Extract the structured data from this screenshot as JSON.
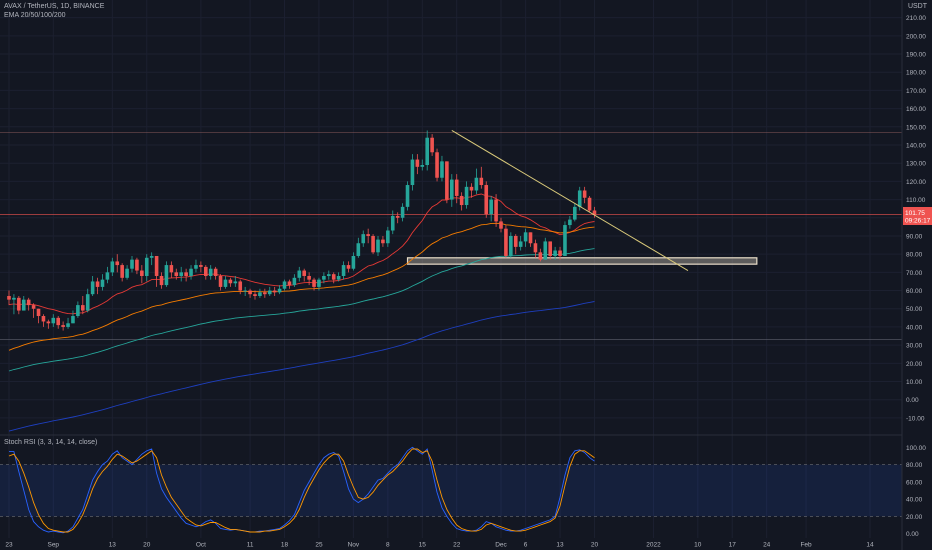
{
  "header": {
    "symbol_line": "AVAX / TetherUS, 1D, BINANCE",
    "indicator_line": "EMA 20/50/100/200",
    "quote_currency": "USDT"
  },
  "stoch_panel": {
    "label": "Stoch RSI (3, 3, 14, 14, close)"
  },
  "price_label": {
    "value": "101.75",
    "countdown": "09:26:17"
  },
  "colors": {
    "background": "#131722",
    "up": "#26a69a",
    "down": "#ef5350",
    "ema20": "#e53935",
    "ema50": "#f57c00",
    "ema100": "#26a69a",
    "ema200": "#1e3fbf",
    "trendline": "#d9c97a",
    "support_zone": "#e8dcc8",
    "stoch_k": "#2962ff",
    "stoch_d": "#ff9800"
  },
  "chart_data": [
    {
      "type": "candlestick",
      "title": "AVAX / TetherUS, 1D, BINANCE",
      "ylabel": "USDT",
      "ylim": [
        -15,
        212
      ],
      "yticks": [
        -10,
        0,
        10,
        20,
        30,
        40,
        50,
        60,
        70,
        80,
        90,
        100,
        110,
        120,
        130,
        140,
        150,
        160,
        170,
        180,
        190,
        200,
        210
      ],
      "x_tick_labels": [
        {
          "label": "23",
          "day": 0
        },
        {
          "label": "Sep",
          "day": 9
        },
        {
          "label": "13",
          "day": 21
        },
        {
          "label": "20",
          "day": 28
        },
        {
          "label": "Oct",
          "day": 39
        },
        {
          "label": "11",
          "day": 49
        },
        {
          "label": "18",
          "day": 56
        },
        {
          "label": "25",
          "day": 63
        },
        {
          "label": "Nov",
          "day": 70
        },
        {
          "label": "8",
          "day": 77
        },
        {
          "label": "15",
          "day": 84
        },
        {
          "label": "22",
          "day": 91
        },
        {
          "label": "Dec",
          "day": 100
        },
        {
          "label": "6",
          "day": 105
        },
        {
          "label": "13",
          "day": 112
        },
        {
          "label": "20",
          "day": 119
        },
        {
          "label": "2022",
          "day": 131
        },
        {
          "label": "10",
          "day": 140
        },
        {
          "label": "17",
          "day": 147
        },
        {
          "label": "24",
          "day": 154
        },
        {
          "label": "Feb",
          "day": 162
        },
        {
          "label": "14",
          "day": 175
        }
      ],
      "close": [
        55,
        56,
        49,
        55,
        52,
        50,
        46,
        43,
        42,
        45,
        41,
        40,
        42,
        46,
        52,
        49,
        58,
        65,
        62,
        66,
        70,
        76,
        74,
        67,
        72,
        77,
        71,
        68,
        78,
        79,
        68,
        63,
        74,
        70,
        68,
        70,
        68,
        72,
        74,
        73,
        68,
        72,
        68,
        62,
        66,
        64,
        65,
        60,
        60,
        58,
        57,
        59,
        58,
        60,
        59,
        61,
        65,
        63,
        67,
        71,
        68,
        66,
        62,
        66,
        68,
        69,
        66,
        68,
        74,
        72,
        79,
        86,
        91,
        90,
        81,
        88,
        86,
        93,
        101,
        100,
        106,
        118,
        132,
        128,
        129,
        144,
        136,
        122,
        131,
        110,
        121,
        112,
        107,
        117,
        115,
        122,
        118,
        102,
        110,
        98,
        94,
        79,
        90,
        84,
        87,
        92,
        86,
        81,
        77,
        87,
        79,
        82,
        79,
        96,
        99,
        106,
        115,
        111,
        104,
        101.75
      ],
      "high": [
        60,
        58,
        57,
        57,
        56,
        53,
        50,
        47,
        44,
        47,
        46,
        43,
        45,
        49,
        54,
        57,
        61,
        68,
        67,
        69,
        73,
        78,
        80,
        75,
        74,
        79,
        78,
        74,
        80,
        81,
        78,
        70,
        76,
        76,
        72,
        73,
        72,
        74,
        77,
        76,
        74,
        74,
        73,
        69,
        68,
        67,
        68,
        66,
        62,
        61,
        60,
        61,
        61,
        62,
        62,
        63,
        66,
        66,
        69,
        73,
        72,
        70,
        67,
        67,
        70,
        71,
        70,
        70,
        76,
        76,
        81,
        89,
        93,
        94,
        91,
        90,
        90,
        95,
        104,
        103,
        108,
        120,
        135,
        135,
        132,
        148,
        146,
        138,
        134,
        131,
        124,
        124,
        114,
        120,
        119,
        127,
        128,
        120,
        112,
        113,
        100,
        96,
        92,
        91,
        90,
        94,
        92,
        88,
        83,
        89,
        87,
        84,
        84,
        98,
        101,
        108,
        117,
        117,
        112,
        106
      ],
      "low": [
        52,
        47,
        47,
        49,
        49,
        45,
        42,
        40,
        39,
        40,
        39,
        38,
        39,
        42,
        45,
        47,
        48,
        57,
        58,
        60,
        64,
        68,
        70,
        65,
        66,
        70,
        69,
        64,
        65,
        74,
        62,
        61,
        62,
        67,
        66,
        65,
        65,
        66,
        70,
        70,
        66,
        66,
        66,
        60,
        61,
        62,
        62,
        58,
        57,
        56,
        55,
        56,
        56,
        57,
        57,
        58,
        60,
        61,
        62,
        65,
        65,
        63,
        60,
        60,
        64,
        66,
        64,
        65,
        66,
        70,
        71,
        78,
        84,
        86,
        80,
        79,
        84,
        84,
        91,
        97,
        98,
        104,
        115,
        124,
        126,
        126,
        134,
        120,
        120,
        108,
        106,
        108,
        104,
        105,
        111,
        113,
        116,
        100,
        98,
        95,
        92,
        78,
        78,
        80,
        82,
        84,
        84,
        78,
        76,
        77,
        77,
        77,
        77,
        80,
        94,
        98,
        104,
        108,
        103,
        100
      ]
    },
    {
      "type": "line",
      "title": "Stoch RSI (3, 3, 14, 14, close)",
      "ylim": [
        -5,
        105
      ],
      "yticks": [
        0,
        20,
        40,
        60,
        80,
        100
      ],
      "reference_lines": [
        20,
        80
      ],
      "series": [
        {
          "name": "K",
          "values": [
            95,
            95,
            72,
            50,
            28,
            14,
            8,
            4,
            2,
            3,
            2,
            1,
            3,
            8,
            18,
            28,
            45,
            62,
            72,
            80,
            84,
            92,
            96,
            88,
            84,
            80,
            86,
            92,
            96,
            98,
            70,
            52,
            42,
            34,
            26,
            18,
            12,
            10,
            8,
            10,
            14,
            16,
            12,
            6,
            5,
            4,
            5,
            4,
            3,
            2,
            2,
            3,
            3,
            4,
            5,
            6,
            10,
            15,
            22,
            36,
            50,
            60,
            70,
            80,
            88,
            92,
            94,
            90,
            72,
            52,
            40,
            36,
            40,
            46,
            54,
            62,
            64,
            70,
            76,
            80,
            88,
            96,
            100,
            96,
            92,
            98,
            74,
            48,
            30,
            20,
            12,
            6,
            4,
            3,
            3,
            4,
            8,
            14,
            12,
            8,
            6,
            4,
            3,
            3,
            4,
            6,
            8,
            10,
            12,
            14,
            16,
            20,
            42,
            68,
            88,
            96,
            97,
            94,
            88,
            84
          ]
        },
        {
          "name": "D",
          "values": [
            90,
            92,
            84,
            70,
            54,
            36,
            22,
            12,
            6,
            4,
            3,
            2,
            2,
            5,
            12,
            22,
            36,
            52,
            64,
            72,
            78,
            86,
            92,
            90,
            86,
            82,
            84,
            88,
            92,
            96,
            88,
            68,
            54,
            42,
            34,
            26,
            18,
            14,
            10,
            9,
            11,
            13,
            13,
            10,
            7,
            5,
            5,
            4,
            3,
            2,
            2,
            2,
            3,
            3,
            4,
            5,
            8,
            12,
            18,
            28,
            42,
            54,
            64,
            74,
            82,
            88,
            92,
            92,
            84,
            68,
            54,
            42,
            40,
            42,
            48,
            56,
            62,
            68,
            72,
            78,
            84,
            92,
            98,
            98,
            94,
            96,
            84,
            62,
            42,
            28,
            18,
            10,
            6,
            4,
            3,
            3,
            5,
            10,
            12,
            10,
            8,
            6,
            4,
            3,
            3,
            4,
            6,
            8,
            10,
            12,
            14,
            18,
            32,
            56,
            78,
            92,
            96,
            96,
            92,
            88
          ]
        }
      ]
    }
  ],
  "annotations": {
    "upper_resistance_line": 147,
    "current_price_line": 101.75,
    "lower_horizontal_line": 33,
    "support_zone": {
      "low": 74.5,
      "high": 78,
      "start_day": 81,
      "end_day": 152
    },
    "trendline": {
      "start_day": 90,
      "start_price": 148,
      "end_day": 138,
      "end_price": 71
    }
  }
}
